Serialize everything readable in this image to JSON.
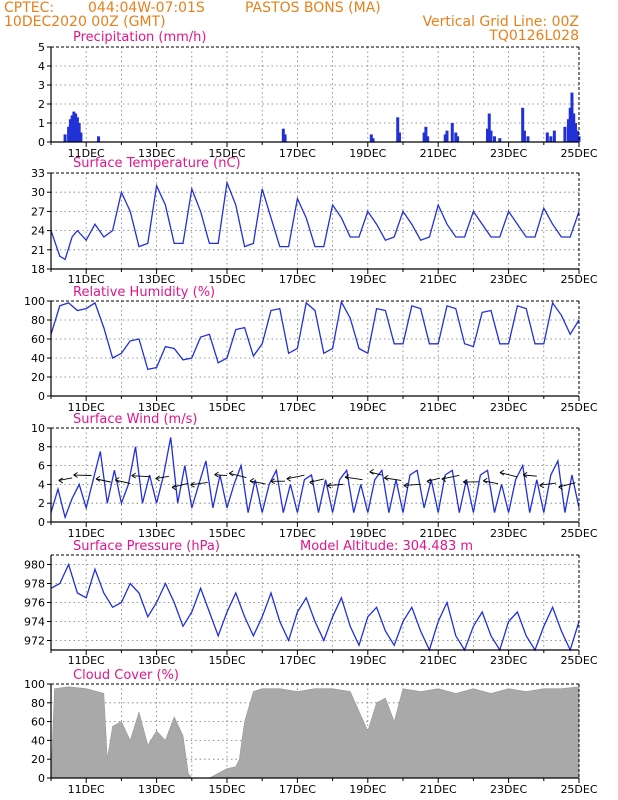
{
  "header": {
    "source": "CPTEC:",
    "coords": "044:04W-07:01S",
    "station": "PASTOS BONS (MA)",
    "datetime": "10DEC2020 00Z (GMT)",
    "grid_note": "Vertical Grid Line: 00Z",
    "code": "TQ0126L028"
  },
  "colors": {
    "header": "#e8801a",
    "panel_title": "#e0168c",
    "line": "#2230d8",
    "bar": "#2230d8",
    "cloud": "#a9a9a9",
    "vector": "#000000"
  },
  "x_axis_labels": [
    "11DEC",
    "13DEC",
    "15DEC",
    "17DEC",
    "19DEC",
    "21DEC",
    "23DEC",
    "25DEC"
  ],
  "panels": [
    {
      "id": "precip",
      "title": "Precipitation (mm/h)",
      "yticks": [
        "0",
        "1",
        "2",
        "3",
        "4",
        "5"
      ]
    },
    {
      "id": "temp",
      "title": "Surface Temperature (nC)",
      "yticks": [
        "18",
        "21",
        "24",
        "27",
        "30",
        "33"
      ]
    },
    {
      "id": "rh",
      "title": "Relative Humidity (%)",
      "yticks": [
        "0",
        "20",
        "40",
        "60",
        "80",
        "100"
      ]
    },
    {
      "id": "wind",
      "title": "Surface Wind (m/s)",
      "yticks": [
        "0",
        "2",
        "4",
        "6",
        "8",
        "10"
      ]
    },
    {
      "id": "press",
      "title": "Surface Pressure (hPa)",
      "extra": "Model Altitude: 304.483 m",
      "yticks": [
        "972",
        "974",
        "976",
        "978",
        "980"
      ]
    },
    {
      "id": "cloud",
      "title": "Cloud Cover (%)",
      "yticks": [
        "0",
        "20",
        "40",
        "60",
        "80",
        "100"
      ]
    }
  ],
  "chart_data": [
    {
      "type": "bar",
      "title": "Precipitation (mm/h)",
      "ylim": [
        0,
        5
      ],
      "grid": true,
      "x_unit": "day of Dec 2020",
      "x": [
        10.4,
        10.5,
        10.55,
        10.6,
        10.65,
        10.7,
        10.75,
        10.8,
        10.85,
        11.35,
        16.6,
        16.65,
        19.1,
        19.15,
        19.85,
        19.9,
        20.6,
        20.65,
        20.7,
        21.2,
        21.25,
        21.4,
        21.5,
        21.55,
        22.4,
        22.45,
        22.5,
        22.6,
        22.75,
        23.4,
        23.45,
        23.55,
        24.1,
        24.2,
        24.3,
        24.6,
        24.7,
        24.75,
        24.8,
        24.85,
        24.9,
        24.95,
        25.0
      ],
      "values": [
        0.4,
        0.8,
        1.2,
        1.4,
        1.6,
        1.5,
        1.3,
        1.0,
        0.5,
        0.3,
        0.7,
        0.4,
        0.4,
        0.2,
        1.3,
        0.5,
        0.5,
        0.8,
        0.3,
        0.4,
        0.6,
        1.0,
        0.5,
        0.3,
        0.7,
        1.5,
        0.6,
        0.3,
        0.2,
        1.8,
        0.6,
        0.3,
        0.5,
        0.3,
        0.6,
        0.8,
        1.2,
        1.8,
        2.6,
        1.5,
        1.0,
        0.6,
        0.3
      ]
    },
    {
      "type": "line",
      "title": "Surface Temperature (nC)",
      "ylim": [
        18,
        33
      ],
      "grid": true,
      "x_unit": "day of Dec 2020",
      "x": [
        10.0,
        10.25,
        10.4,
        10.6,
        10.75,
        11.0,
        11.25,
        11.5,
        11.75,
        12.0,
        12.25,
        12.5,
        12.75,
        13.0,
        13.25,
        13.5,
        13.75,
        14.0,
        14.25,
        14.5,
        14.75,
        15.0,
        15.25,
        15.5,
        15.75,
        16.0,
        16.25,
        16.5,
        16.75,
        17.0,
        17.25,
        17.5,
        17.75,
        18.0,
        18.25,
        18.5,
        18.75,
        19.0,
        19.25,
        19.5,
        19.75,
        20.0,
        20.25,
        20.5,
        20.75,
        21.0,
        21.25,
        21.5,
        21.75,
        22.0,
        22.25,
        22.5,
        22.75,
        23.0,
        23.25,
        23.5,
        23.75,
        24.0,
        24.25,
        24.5,
        24.75,
        25.0
      ],
      "values": [
        24,
        20,
        19.5,
        23,
        24,
        22.5,
        25,
        23,
        24,
        30,
        27,
        21.5,
        22,
        31,
        28,
        22,
        22,
        30.5,
        27,
        22,
        22,
        31.5,
        28,
        21.5,
        22,
        30.5,
        26,
        21.5,
        21.5,
        29,
        26,
        21.5,
        21.5,
        28,
        26,
        23,
        23,
        27,
        25,
        22.5,
        23,
        27,
        25,
        22.5,
        23,
        28,
        25,
        23,
        23,
        27,
        25,
        23,
        23,
        27,
        25,
        23,
        23,
        27.5,
        25,
        23,
        23,
        27
      ]
    },
    {
      "type": "line",
      "title": "Relative Humidity (%)",
      "ylim": [
        0,
        100
      ],
      "grid": true,
      "x_unit": "day of Dec 2020",
      "x": [
        10.0,
        10.25,
        10.5,
        10.75,
        11.0,
        11.25,
        11.5,
        11.75,
        12.0,
        12.25,
        12.5,
        12.75,
        13.0,
        13.25,
        13.5,
        13.75,
        14.0,
        14.25,
        14.5,
        14.75,
        15.0,
        15.25,
        15.5,
        15.75,
        16.0,
        16.25,
        16.5,
        16.75,
        17.0,
        17.25,
        17.5,
        17.75,
        18.0,
        18.25,
        18.5,
        18.75,
        19.0,
        19.25,
        19.5,
        19.75,
        20.0,
        20.25,
        20.5,
        20.75,
        21.0,
        21.25,
        21.5,
        21.75,
        22.0,
        22.25,
        22.5,
        22.75,
        23.0,
        23.25,
        23.5,
        23.75,
        24.0,
        24.25,
        24.5,
        24.75,
        25.0
      ],
      "values": [
        65,
        95,
        98,
        90,
        92,
        98,
        72,
        40,
        45,
        58,
        60,
        28,
        30,
        52,
        50,
        38,
        40,
        62,
        65,
        35,
        40,
        70,
        72,
        42,
        55,
        90,
        92,
        45,
        50,
        98,
        90,
        45,
        50,
        99,
        82,
        50,
        45,
        92,
        90,
        55,
        55,
        95,
        92,
        55,
        55,
        95,
        92,
        55,
        52,
        88,
        90,
        55,
        55,
        95,
        92,
        55,
        55,
        98,
        85,
        65,
        80
      ]
    },
    {
      "type": "line",
      "title": "Surface Wind (m/s)",
      "ylim": [
        0,
        10
      ],
      "grid": true,
      "x_unit": "day of Dec 2020",
      "x": [
        10.0,
        10.2,
        10.4,
        10.6,
        10.8,
        11.0,
        11.2,
        11.4,
        11.6,
        11.8,
        12.0,
        12.2,
        12.4,
        12.6,
        12.8,
        13.0,
        13.2,
        13.4,
        13.6,
        13.8,
        14.0,
        14.2,
        14.4,
        14.6,
        14.8,
        15.0,
        15.2,
        15.4,
        15.6,
        15.8,
        16.0,
        16.2,
        16.4,
        16.6,
        16.8,
        17.0,
        17.2,
        17.4,
        17.6,
        17.8,
        18.0,
        18.2,
        18.4,
        18.6,
        18.8,
        19.0,
        19.2,
        19.4,
        19.6,
        19.8,
        20.0,
        20.2,
        20.4,
        20.6,
        20.8,
        21.0,
        21.2,
        21.4,
        21.6,
        21.8,
        22.0,
        22.2,
        22.4,
        22.6,
        22.8,
        23.0,
        23.2,
        23.4,
        23.6,
        23.8,
        24.0,
        24.2,
        24.4,
        24.6,
        24.8,
        25.0
      ],
      "values": [
        1,
        3.5,
        0.5,
        2.5,
        4,
        1.5,
        4.5,
        7.5,
        2,
        5.5,
        2,
        4,
        8,
        2,
        5,
        2,
        5,
        9,
        2,
        6,
        1.5,
        4,
        6.5,
        1.5,
        5,
        1.5,
        4,
        6,
        1,
        4.5,
        1,
        4,
        5.5,
        1,
        4,
        1,
        4.5,
        5,
        1,
        4.5,
        1,
        4.5,
        5.5,
        1,
        4,
        1,
        4.5,
        5.5,
        1,
        4.5,
        1,
        5,
        5.5,
        1.5,
        4.5,
        1,
        5,
        5.5,
        1,
        4.5,
        1,
        5,
        5.5,
        1,
        4,
        1,
        4.5,
        6,
        1,
        4.5,
        1,
        5,
        6.5,
        1,
        5,
        1.5
      ]
    },
    {
      "type": "line",
      "title": "Surface Pressure (hPa)",
      "annotations": [
        "Model Altitude: 304.483 m"
      ],
      "ylim": [
        971,
        981
      ],
      "grid": true,
      "x_unit": "day of Dec 2020",
      "x": [
        10.0,
        10.25,
        10.5,
        10.75,
        11.0,
        11.25,
        11.5,
        11.75,
        12.0,
        12.25,
        12.5,
        12.75,
        13.0,
        13.25,
        13.5,
        13.75,
        14.0,
        14.25,
        14.5,
        14.75,
        15.0,
        15.25,
        15.5,
        15.75,
        16.0,
        16.25,
        16.5,
        16.75,
        17.0,
        17.25,
        17.5,
        17.75,
        18.0,
        18.25,
        18.5,
        18.75,
        19.0,
        19.25,
        19.5,
        19.75,
        20.0,
        20.25,
        20.5,
        20.75,
        21.0,
        21.25,
        21.5,
        21.75,
        22.0,
        22.25,
        22.5,
        22.75,
        23.0,
        23.25,
        23.5,
        23.75,
        24.0,
        24.25,
        24.5,
        24.75,
        25.0
      ],
      "values": [
        977.5,
        978,
        980,
        977,
        976.5,
        979.5,
        977,
        975.5,
        976,
        978,
        977,
        974.5,
        976,
        978,
        976,
        973.5,
        975,
        977.5,
        975,
        972.5,
        975,
        977,
        974.5,
        972.5,
        974.5,
        977,
        974,
        972,
        975,
        976.5,
        974,
        972,
        974.5,
        976.5,
        973.5,
        971.5,
        974.5,
        975.5,
        973,
        971.5,
        974,
        975.5,
        973,
        971,
        974,
        976,
        972.5,
        971,
        973.5,
        975,
        972.5,
        971,
        974,
        975,
        972.5,
        971,
        973.5,
        975.5,
        973,
        971,
        974
      ]
    },
    {
      "type": "area",
      "title": "Cloud Cover (%)",
      "ylim": [
        0,
        100
      ],
      "grid": true,
      "x_unit": "day of Dec 2020",
      "x": [
        10.0,
        10.1,
        10.5,
        11.0,
        11.5,
        11.6,
        11.75,
        12.0,
        12.25,
        12.5,
        12.75,
        13.0,
        13.25,
        13.5,
        13.75,
        13.9,
        14.0,
        14.25,
        14.5,
        14.75,
        15.0,
        15.25,
        15.35,
        15.5,
        15.75,
        16.0,
        16.5,
        17.0,
        17.5,
        18.0,
        18.5,
        19.0,
        19.25,
        19.5,
        19.75,
        20.0,
        20.5,
        21.0,
        21.5,
        22.0,
        22.5,
        23.0,
        23.5,
        24.0,
        24.5,
        25.0
      ],
      "values": [
        0,
        95,
        97,
        95,
        90,
        20,
        55,
        60,
        40,
        70,
        35,
        50,
        40,
        65,
        45,
        5,
        0,
        0,
        0,
        5,
        10,
        12,
        20,
        60,
        92,
        95,
        95,
        92,
        95,
        95,
        92,
        50,
        80,
        85,
        60,
        95,
        92,
        95,
        90,
        95,
        90,
        95,
        92,
        95,
        95,
        97
      ]
    }
  ]
}
